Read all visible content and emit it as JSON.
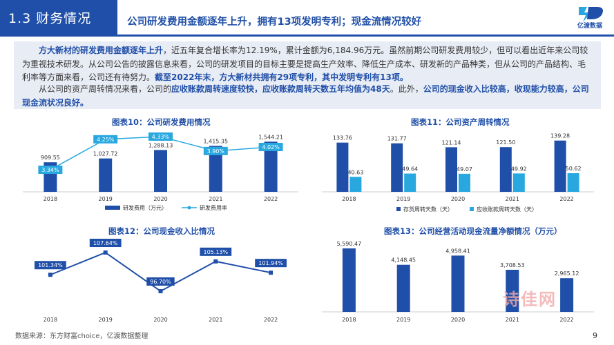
{
  "header": {
    "section": "1.3 财务情况",
    "headline": "公司研发费用金额逐年上升，拥有13项发明专利；现金流情况较好",
    "logo_text": "亿渡数据"
  },
  "intro": {
    "p1": [
      {
        "t": "方大新材的研发费用金额逐年上升",
        "hl": true
      },
      {
        "t": "，近五年复合增长率为12.19%，累计金额为6,184.96万元。虽然前期公司研发费用较少，但可以看出近年来公司较为重视技术研发。从公司公告的披露信息来看，公司的研发项目的目标主要是提高生产效率、降低生产成本、研发新的产品种类，但从公司的产品结构、毛利率等方面来看，公司还有待努力。",
        "hl": false
      },
      {
        "t": "截至2022年末，方大新材共拥有29项专利，其中发明专利有13项。",
        "hl": true
      }
    ],
    "p2": [
      {
        "t": "从公司的资产周转情况来看，公司的",
        "hl": false
      },
      {
        "t": "应收账款周转速度较快，应收账款周转天数五年均值为48天",
        "hl": true
      },
      {
        "t": "。此外，",
        "hl": false
      },
      {
        "t": "公司的现金收入比较高，收现能力较高，公司现金流状况良好。",
        "hl": true
      }
    ]
  },
  "charts": {
    "c10_title": "图表10：公司研发费用情况",
    "c11_title": "图表11：公司资产周转情况",
    "c12_title": "图表12：公司现金收入比情况",
    "c13_title": "图表13：公司经营活动现金流量净额情况（万元）"
  },
  "chart_data": [
    {
      "id": "c10",
      "type": "bar",
      "categories": [
        "2018",
        "2019",
        "2020",
        "2021",
        "2022"
      ],
      "series": [
        {
          "name": "研发费用（万元）",
          "type": "bar",
          "values": [
            909.55,
            1027.72,
            1288.13,
            1415.35,
            1544.21
          ],
          "labels": [
            "909.55",
            "1,027.72",
            "1,288.13",
            "1,415.35",
            "1,544.21"
          ],
          "color": "#1f4fa8"
        },
        {
          "name": "研发费用率",
          "type": "line",
          "values": [
            3.34,
            4.25,
            4.33,
            3.9,
            4.02
          ],
          "labels": [
            "3.34%",
            "4.25%",
            "4.33%",
            "3.90%",
            "4.02%"
          ],
          "color": "#29a8e0"
        }
      ]
    },
    {
      "id": "c11",
      "type": "bar",
      "categories": [
        "2018",
        "2019",
        "2020",
        "2021",
        "2022"
      ],
      "series": [
        {
          "name": "存货周转天数（天）",
          "values": [
            133.76,
            131.77,
            121.14,
            121.5,
            139.28
          ],
          "labels": [
            "133.76",
            "131.77",
            "121.14",
            "121.50",
            "139.28"
          ],
          "color": "#1f4fa8"
        },
        {
          "name": "应收账款周转天数（天）",
          "values": [
            40.63,
            49.64,
            49.07,
            49.92,
            50.62
          ],
          "labels": [
            "40.63",
            "49.64",
            "49.07",
            "49.92",
            "50.62"
          ],
          "color": "#29a8e0"
        }
      ]
    },
    {
      "id": "c12",
      "type": "line",
      "categories": [
        "2018",
        "2019",
        "2020",
        "2021",
        "2022"
      ],
      "series": [
        {
          "values": [
            101.34,
            107.64,
            96.7,
            105.13,
            101.94
          ],
          "labels": [
            "101.34%",
            "107.64%",
            "96.70%",
            "105.13%",
            "101.94%"
          ],
          "color": "#1f4fa8"
        }
      ]
    },
    {
      "id": "c13",
      "type": "bar",
      "categories": [
        "2018",
        "2019",
        "2020",
        "2021",
        "2022"
      ],
      "series": [
        {
          "values": [
            5590.47,
            4148.45,
            4958.41,
            3708.53,
            2965.12
          ],
          "labels": [
            "5,590.47",
            "4,148.45",
            "4,958.41",
            "3,708.53",
            "2,965.12"
          ],
          "color": "#1f4fa8"
        }
      ]
    }
  ],
  "footer": {
    "source": "数据来源：东方财富choice，亿渡数据整理",
    "page": "9",
    "watermark": "诗佳网"
  }
}
